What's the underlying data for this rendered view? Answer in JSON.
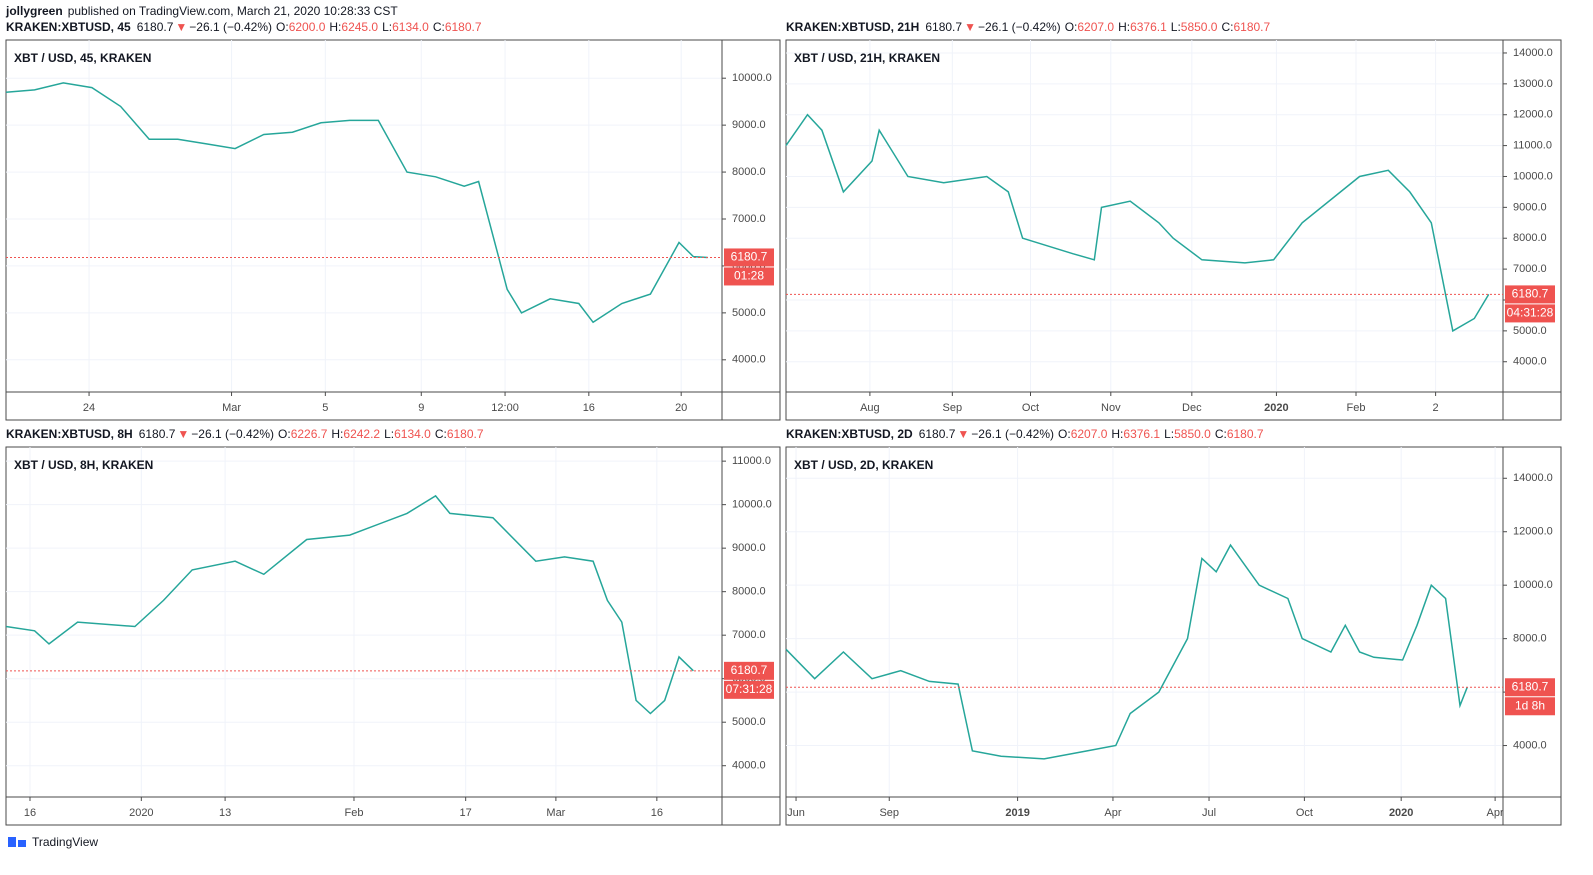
{
  "author": "jollygreen",
  "published": "published on TradingView.com, March 21, 2020 10:28:33 CST",
  "footer": "TradingView",
  "chart_data": [
    {
      "type": "line",
      "title": "XBT / USD, 45, KRAKEN",
      "color": "#26a69a",
      "header": {
        "symbol": "KRAKEN:XBTUSD, 45",
        "price": "6180.7",
        "direction": "▼",
        "change": "−26.1 (−0.42%)",
        "fields": [
          {
            "label": "O:",
            "value": "6200.0"
          },
          {
            "label": "H:",
            "value": "6245.0"
          },
          {
            "label": "L:",
            "value": "6134.0"
          },
          {
            "label": "C:",
            "value": "6180.7"
          }
        ]
      },
      "x": [
        0,
        4,
        8,
        12,
        16,
        20,
        24,
        28,
        32,
        36,
        40,
        44,
        48,
        52,
        56,
        60,
        64,
        66,
        70,
        72,
        76,
        80,
        82,
        86,
        90,
        94,
        96,
        98
      ],
      "values": [
        9700,
        9750,
        9900,
        9800,
        9400,
        8700,
        8700,
        8600,
        8500,
        8800,
        8850,
        9050,
        9100,
        9100,
        8000,
        7900,
        7700,
        7800,
        5500,
        5000,
        5300,
        5200,
        4800,
        5200,
        5400,
        6500,
        6200,
        6180.7
      ],
      "xlim": [
        0,
        100
      ],
      "ylim": [
        3314,
        10814
      ],
      "xticks": [
        {
          "value": 11.6,
          "label": "24"
        },
        {
          "value": 31.5,
          "label": "Mar"
        },
        {
          "value": 44.6,
          "label": "5"
        },
        {
          "value": 58,
          "label": "9"
        },
        {
          "value": 69.7,
          "label": "12:00"
        },
        {
          "value": 81.4,
          "label": "16"
        },
        {
          "value": 94.3,
          "label": "20"
        }
      ],
      "yticks": [
        {
          "value": 4000,
          "label": "4000.0"
        },
        {
          "value": 5000,
          "label": "5000.0"
        },
        {
          "value": 6000,
          "label": "6000.0"
        },
        {
          "value": 7000,
          "label": "7000.0"
        },
        {
          "value": 8000,
          "label": "8000.0"
        },
        {
          "value": 9000,
          "label": "9000.0"
        },
        {
          "value": 10000,
          "label": "10000.0"
        }
      ],
      "last_price": 6180.7,
      "countdown": "01:28",
      "grid": true
    },
    {
      "type": "line",
      "title": "XBT / USD, 21H, KRAKEN",
      "color": "#26a69a",
      "header": {
        "symbol": "KRAKEN:XBTUSD, 21H",
        "price": "6180.7",
        "direction": "▼",
        "change": "−26.1 (−0.42%)",
        "fields": [
          {
            "label": "O:",
            "value": "6207.0"
          },
          {
            "label": "H:",
            "value": "6376.1"
          },
          {
            "label": "L:",
            "value": "5850.0"
          },
          {
            "label": "C:",
            "value": "6180.7"
          }
        ]
      },
      "x": [
        0,
        3,
        5,
        8,
        12,
        13,
        17,
        22,
        28,
        31,
        33,
        40,
        43,
        44,
        48,
        52,
        54,
        58,
        64,
        68,
        72,
        80,
        84,
        87,
        90,
        93,
        96,
        98
      ],
      "values": [
        11000,
        12000,
        11500,
        9500,
        10500,
        11500,
        10000,
        9800,
        10000,
        9500,
        8000,
        7500,
        7300,
        9000,
        9200,
        8500,
        8000,
        7300,
        7200,
        7300,
        8500,
        10000,
        10200,
        9500,
        8500,
        5000,
        5400,
        6180.7
      ],
      "xlim": [
        0,
        100
      ],
      "ylim": [
        3020,
        14420
      ],
      "xticks": [
        {
          "value": 11.7,
          "label": "Aug"
        },
        {
          "value": 23.2,
          "label": "Sep"
        },
        {
          "value": 34.1,
          "label": "Oct"
        },
        {
          "value": 45.3,
          "label": "Nov"
        },
        {
          "value": 56.6,
          "label": "Dec"
        },
        68.4,
        {
          "value": 79.5,
          "label": "Feb"
        },
        {
          "value": 90.6,
          "label": "2"
        }
      ],
      "xtick_labels": [
        "2020"
      ],
      "yticks": [
        {
          "value": 4000,
          "label": "4000.0"
        },
        {
          "value": 5000,
          "label": "5000.0"
        },
        {
          "value": 6000,
          "label": "6000.0"
        },
        {
          "value": 7000,
          "label": "7000.0"
        },
        {
          "value": 8000,
          "label": "8000.0"
        },
        {
          "value": 9000,
          "label": "9000.0"
        },
        {
          "value": 10000,
          "label": "10000.0"
        },
        {
          "value": 11000,
          "label": "11000.0"
        },
        {
          "value": 12000,
          "label": "12000.0"
        },
        {
          "value": 13000,
          "label": "13000.0"
        },
        {
          "value": 14000,
          "label": "14000.0"
        }
      ],
      "last_price": 6180.7,
      "countdown": "04:31:28",
      "grid": true
    },
    {
      "type": "line",
      "title": "XBT / USD, 8H, KRAKEN",
      "color": "#26a69a",
      "header": {
        "symbol": "KRAKEN:XBTUSD, 8H",
        "price": "6180.7",
        "direction": "▼",
        "change": "−26.1 (−0.42%)",
        "fields": [
          {
            "label": "O:",
            "value": "6226.7"
          },
          {
            "label": "H:",
            "value": "6242.2"
          },
          {
            "label": "L:",
            "value": "6134.0"
          },
          {
            "label": "C:",
            "value": "6180.7"
          }
        ]
      },
      "x": [
        0,
        4,
        6,
        10,
        18,
        22,
        26,
        32,
        36,
        42,
        48,
        56,
        60,
        62,
        68,
        74,
        78,
        82,
        84,
        86,
        88,
        90,
        92,
        94,
        96
      ],
      "values": [
        7200,
        7100,
        6800,
        7300,
        7200,
        7800,
        8500,
        8700,
        8400,
        9200,
        9300,
        9800,
        10200,
        9800,
        9700,
        8700,
        8800,
        8700,
        7800,
        7300,
        5500,
        5200,
        5500,
        6500,
        6180.7
      ],
      "xlim": [
        0,
        100
      ],
      "ylim": [
        3281,
        11325
      ],
      "xticks": [
        {
          "value": 3.35,
          "label": "16"
        },
        {
          "value": 18.9,
          "label": "2020"
        },
        {
          "value": 30.6,
          "label": "13"
        },
        {
          "value": 48.6,
          "label": "Feb"
        },
        {
          "value": 64.2,
          "label": "17"
        },
        {
          "value": 76.8,
          "label": "Mar"
        },
        {
          "value": 90.9,
          "label": "16"
        }
      ],
      "yticks": [
        {
          "value": 4000,
          "label": "4000.0"
        },
        {
          "value": 5000,
          "label": "5000.0"
        },
        {
          "value": 6000,
          "label": "6000.0"
        },
        {
          "value": 7000,
          "label": "7000.0"
        },
        {
          "value": 8000,
          "label": "8000.0"
        },
        {
          "value": 9000,
          "label": "9000.0"
        },
        {
          "value": 10000,
          "label": "10000.0"
        },
        {
          "value": 11000,
          "label": "11000.0"
        }
      ],
      "last_price": 6180.7,
      "countdown": "07:31:28",
      "grid": true
    },
    {
      "type": "line",
      "title": "XBT / USD, 2D, KRAKEN",
      "color": "#26a69a",
      "header": {
        "symbol": "KRAKEN:XBTUSD, 2D",
        "price": "6180.7",
        "direction": "▼",
        "change": "−26.1 (−0.42%)",
        "fields": [
          {
            "label": "O:",
            "value": "6207.0"
          },
          {
            "label": "H:",
            "value": "6376.1"
          },
          {
            "label": "L:",
            "value": "5850.0"
          },
          {
            "label": "C:",
            "value": "6180.7"
          }
        ]
      },
      "x": [
        0,
        4,
        8,
        12,
        16,
        20,
        24,
        26,
        30,
        36,
        42,
        46,
        48,
        52,
        56,
        58,
        60,
        62,
        66,
        70,
        72,
        76,
        78,
        80,
        82,
        86,
        88,
        90,
        92,
        94,
        95
      ],
      "values": [
        7600,
        6500,
        7500,
        6500,
        6800,
        6400,
        6300,
        3800,
        3600,
        3500,
        3800,
        4000,
        5200,
        6000,
        8000,
        11000,
        10500,
        11500,
        10000,
        9500,
        8000,
        7500,
        8500,
        7500,
        7300,
        7200,
        8500,
        10000,
        9500,
        5500,
        6180.7
      ],
      "xlim": [
        0,
        100
      ],
      "ylim": [
        2075,
        15170
      ],
      "xticks": [
        {
          "value": 1.4,
          "label": "Jun"
        },
        {
          "value": 14.4,
          "label": "Sep"
        },
        32.3,
        {
          "value": 45.6,
          "label": "Apr"
        },
        {
          "value": 59,
          "label": "Jul"
        },
        {
          "value": 72.3,
          "label": "Oct"
        },
        85.8,
        {
          "value": 98.9,
          "label": "Apr"
        }
      ],
      "xtick_labels": [
        "2019",
        "2020"
      ],
      "yticks": [
        {
          "value": 4000,
          "label": "4000.0"
        },
        {
          "value": 6000,
          "label": "6000.0"
        },
        {
          "value": 8000,
          "label": "8000.0"
        },
        {
          "value": 10000,
          "label": "10000.0"
        },
        {
          "value": 12000,
          "label": "12000.0"
        },
        {
          "value": 14000,
          "label": "14000.0"
        }
      ],
      "last_price": 6180.7,
      "countdown": "1d 8h",
      "grid": true
    }
  ]
}
